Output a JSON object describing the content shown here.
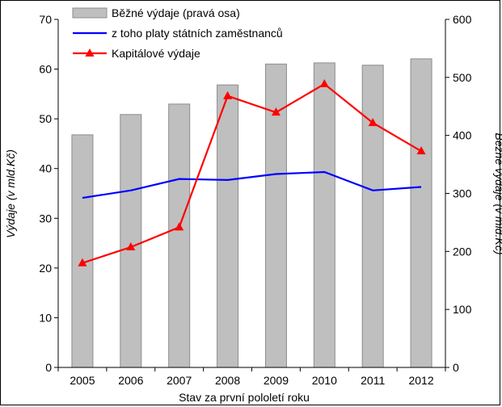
{
  "chart_data": {
    "type": "bar",
    "title": "",
    "x": [
      "2005",
      "2006",
      "2007",
      "2008",
      "2009",
      "2010",
      "2011",
      "2012"
    ],
    "xlabel": "Stav za první pololetí roku",
    "ylabel_left": "Výdaje (v mld.Kč)",
    "ylabel_right": "Běžné výdaje (v mld.Kč)",
    "ylim_left": [
      0,
      70
    ],
    "yticks_left": [
      "0",
      "10",
      "20",
      "30",
      "40",
      "50",
      "60",
      "70"
    ],
    "ylim_right": [
      0,
      600
    ],
    "yticks_right": [
      "0",
      "100",
      "200",
      "300",
      "400",
      "500",
      "600"
    ],
    "grid": false,
    "legend_position": "top",
    "series": [
      {
        "name": "Běžné výdaje (pravá osa)",
        "type": "bar",
        "axis": "right",
        "color": "#bfbfbf",
        "values": [
          401,
          436,
          454,
          487,
          523,
          525,
          521,
          532
        ]
      },
      {
        "name": "z toho platy státních zaměstnanců",
        "type": "line",
        "axis": "left",
        "color": "#0000ff",
        "values": [
          34.1,
          35.6,
          37.9,
          37.7,
          38.9,
          39.3,
          35.6,
          36.3
        ]
      },
      {
        "name": "Kapitálové výdaje",
        "type": "line",
        "axis": "left",
        "marker": "triangle",
        "color": "#ff0000",
        "values": [
          21.0,
          24.2,
          28.2,
          54.6,
          51.3,
          57.0,
          49.2,
          43.5
        ]
      }
    ]
  }
}
